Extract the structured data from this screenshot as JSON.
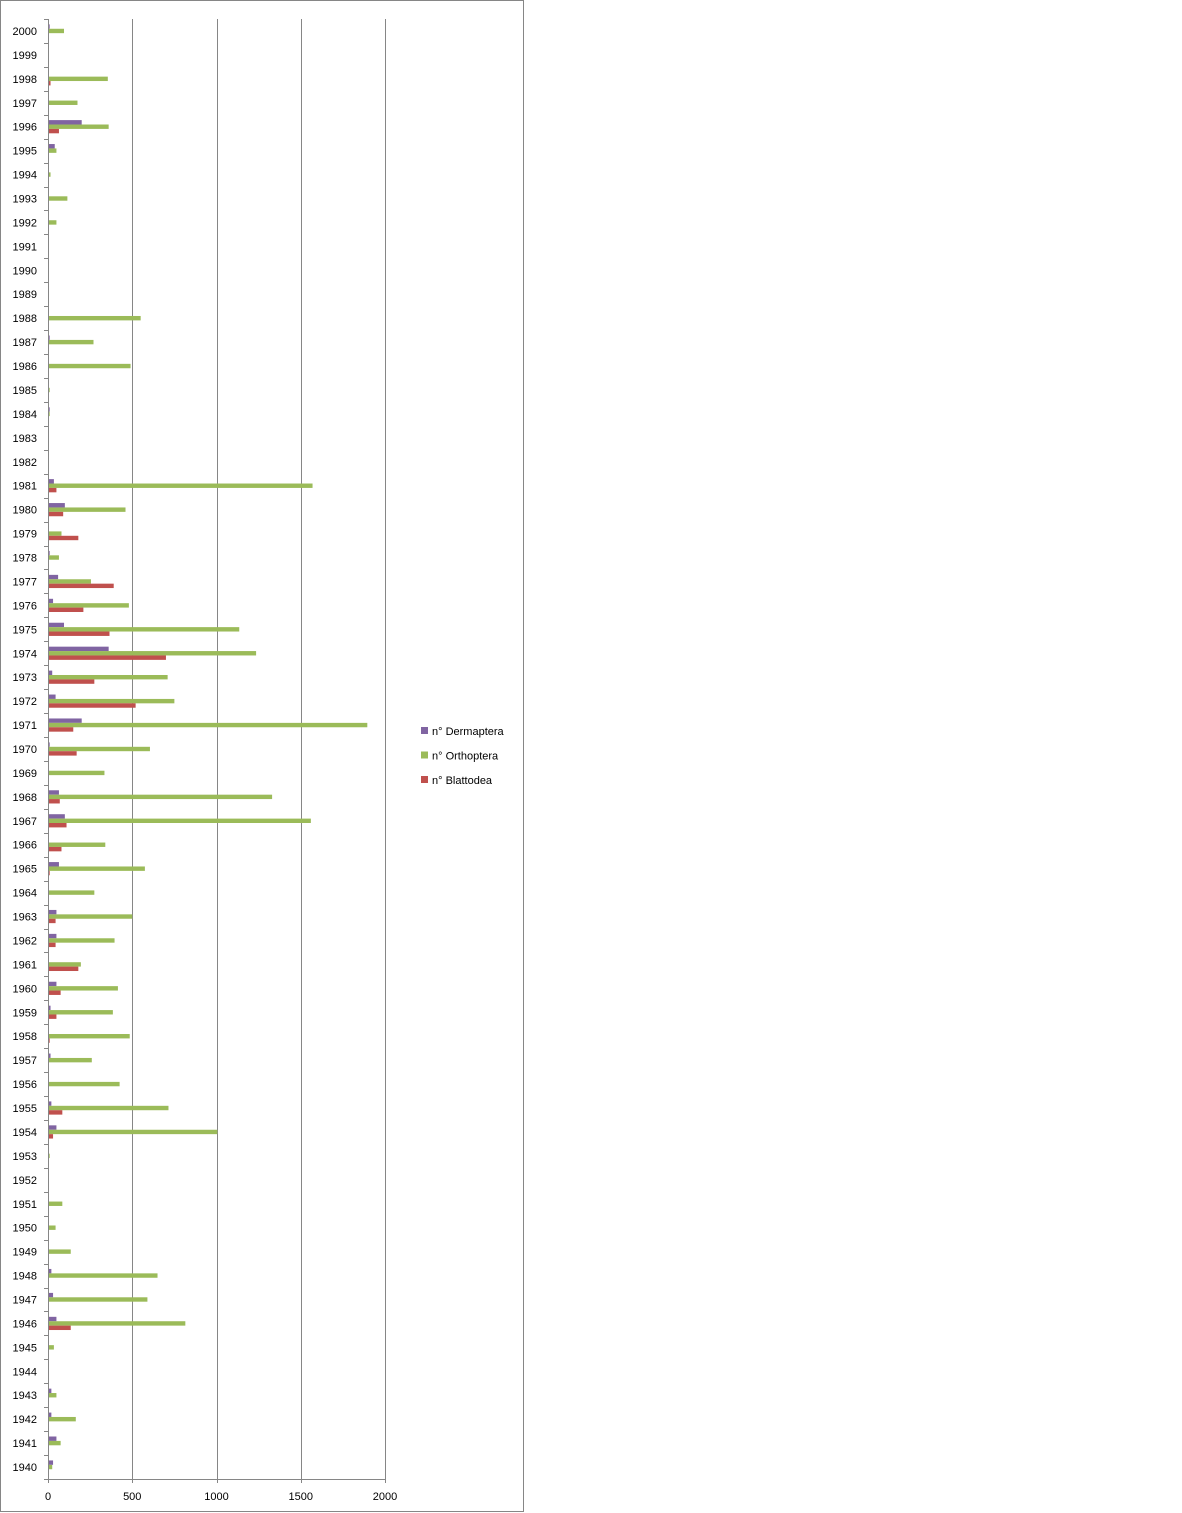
{
  "chart_data": {
    "type": "bar",
    "orientation": "horizontal",
    "categories": [
      "1940",
      "1941",
      "1942",
      "1943",
      "1944",
      "1945",
      "1946",
      "1947",
      "1948",
      "1949",
      "1950",
      "1951",
      "1952",
      "1953",
      "1954",
      "1955",
      "1956",
      "1957",
      "1958",
      "1959",
      "1960",
      "1961",
      "1962",
      "1963",
      "1964",
      "1965",
      "1966",
      "1967",
      "1968",
      "1969",
      "1970",
      "1971",
      "1972",
      "1973",
      "1974",
      "1975",
      "1976",
      "1977",
      "1978",
      "1979",
      "1980",
      "1981",
      "1982",
      "1983",
      "1984",
      "1985",
      "1986",
      "1987",
      "1988",
      "1989",
      "1990",
      "1991",
      "1992",
      "1993",
      "1994",
      "1995",
      "1996",
      "1997",
      "1998",
      "1999",
      "2000"
    ],
    "series": [
      {
        "name": "n° Dermaptera",
        "color": "#8064A2",
        "values": [
          30,
          50,
          20,
          20,
          0,
          0,
          50,
          30,
          20,
          0,
          0,
          0,
          0,
          0,
          50,
          20,
          0,
          15,
          5,
          15,
          50,
          5,
          50,
          50,
          5,
          65,
          0,
          100,
          65,
          0,
          10,
          200,
          45,
          25,
          360,
          95,
          30,
          60,
          10,
          5,
          100,
          35,
          5,
          0,
          10,
          0,
          5,
          10,
          5,
          0,
          0,
          0,
          0,
          0,
          0,
          40,
          200,
          0,
          5,
          0,
          10
        ]
      },
      {
        "name": "n° Orthoptera",
        "color": "#9BBB59",
        "values": [
          25,
          75,
          165,
          50,
          5,
          35,
          815,
          590,
          650,
          135,
          45,
          85,
          0,
          10,
          1005,
          715,
          425,
          260,
          485,
          385,
          415,
          195,
          395,
          500,
          275,
          575,
          340,
          1560,
          1330,
          335,
          605,
          1895,
          750,
          710,
          1235,
          1135,
          480,
          255,
          65,
          80,
          460,
          1570,
          0,
          0,
          10,
          10,
          490,
          270,
          550,
          0,
          0,
          5,
          50,
          115,
          15,
          50,
          360,
          175,
          355,
          0,
          95
        ]
      },
      {
        "name": "n° Blattodea",
        "color": "#C0504D",
        "values": [
          0,
          0,
          0,
          0,
          0,
          0,
          135,
          0,
          0,
          0,
          0,
          0,
          0,
          0,
          30,
          85,
          0,
          0,
          10,
          50,
          75,
          180,
          45,
          45,
          0,
          10,
          80,
          110,
          70,
          0,
          170,
          150,
          520,
          275,
          700,
          365,
          210,
          390,
          0,
          180,
          90,
          50,
          0,
          0,
          0,
          0,
          0,
          0,
          0,
          0,
          0,
          0,
          0,
          0,
          0,
          0,
          65,
          0,
          15,
          0,
          0
        ]
      }
    ],
    "x_ticks": [
      "0",
      "500",
      "1000",
      "1500",
      "2000"
    ],
    "xlim": [
      0,
      2000
    ],
    "title": "",
    "xlabel": "",
    "ylabel": "",
    "grid": "vertical major gridlines",
    "legend_position": "right"
  }
}
